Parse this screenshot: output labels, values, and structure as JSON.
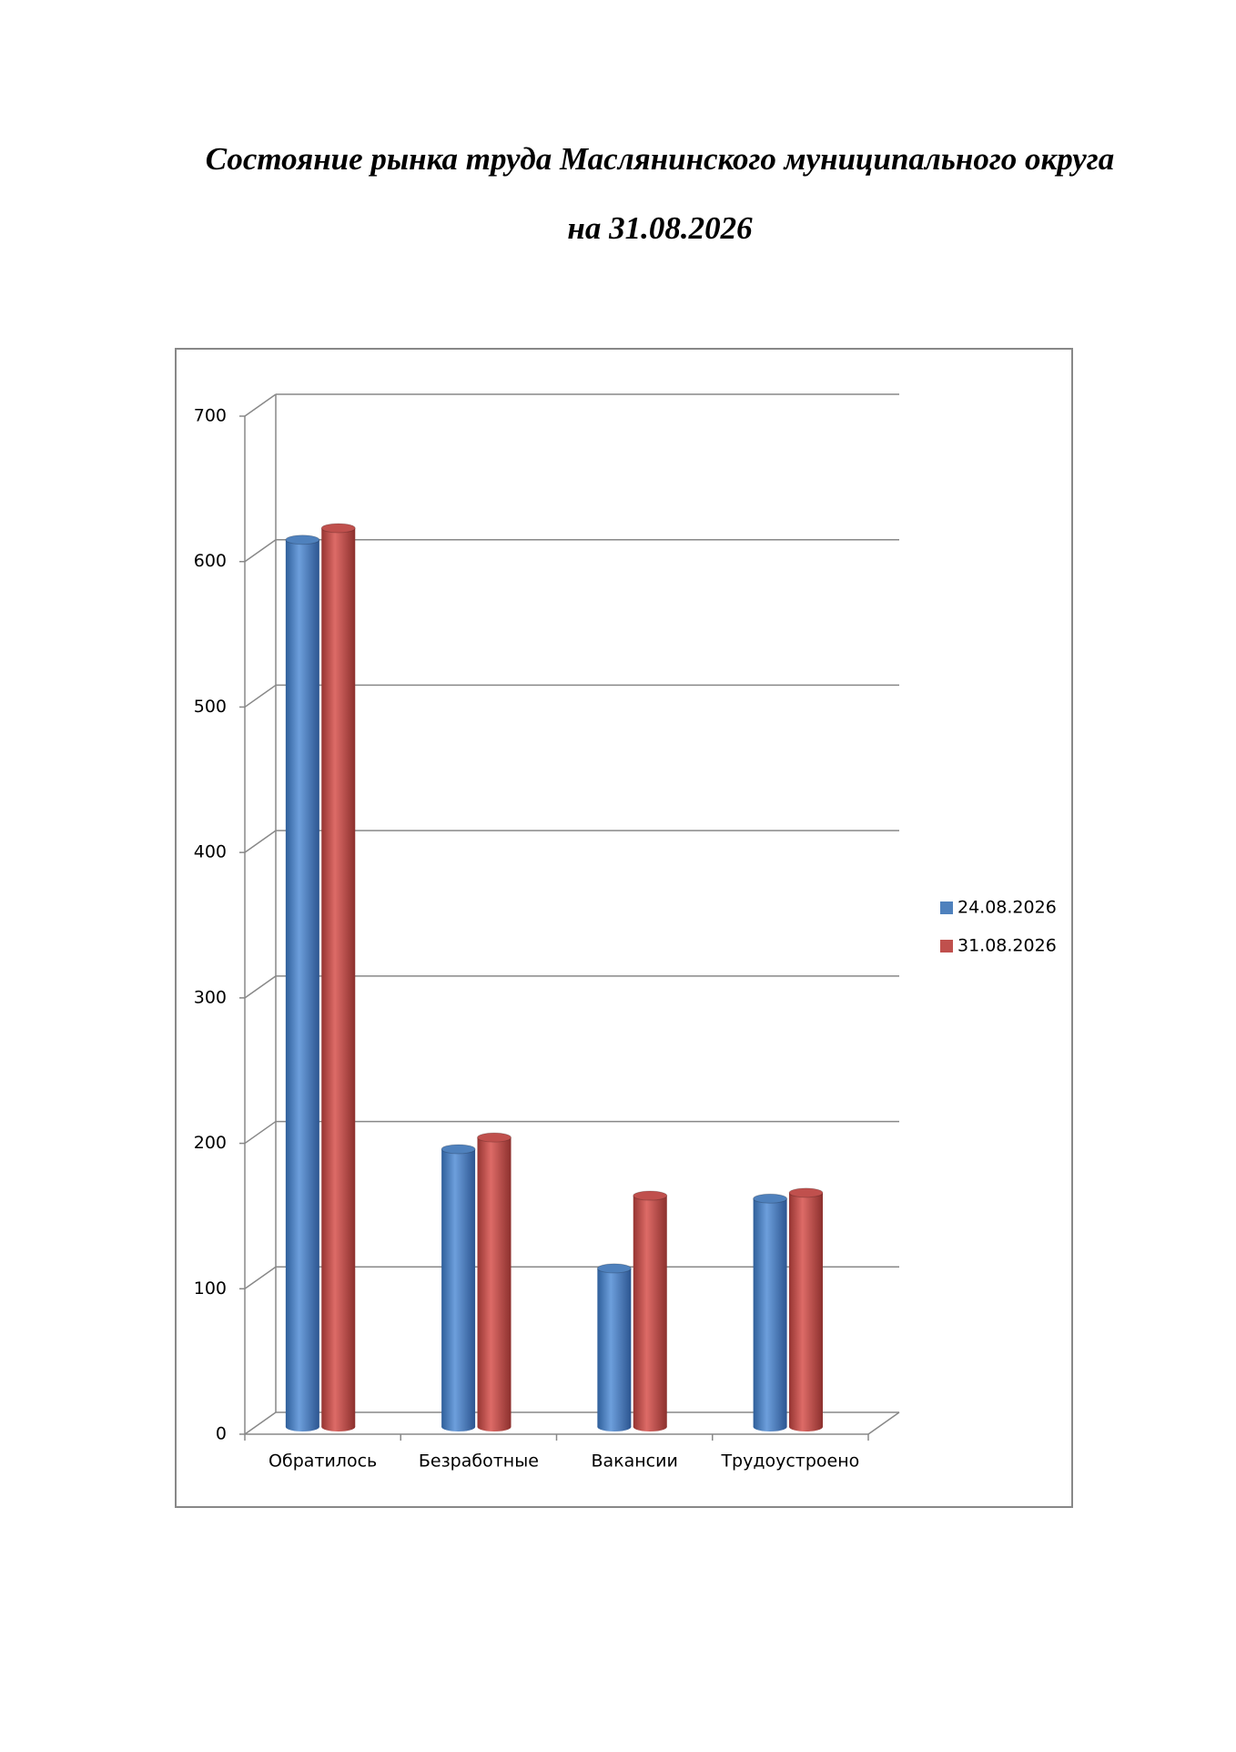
{
  "chart_data": {
    "type": "bar",
    "title": "Состояние рынка труда Маслянинского муниципального округа",
    "subtitle": "на 31.08.2026",
    "categories": [
      "Обратилось",
      "Безработные",
      "Вакансии",
      "Трудоустроено"
    ],
    "series": [
      {
        "name": "24.08.2026",
        "color": "#4f81bd",
        "values": [
          610,
          191,
          109,
          157
        ]
      },
      {
        "name": "31.08.2026",
        "color": "#c0504d",
        "values": [
          618,
          199,
          159,
          161
        ]
      }
    ],
    "ylim": [
      0,
      700
    ],
    "yticks": [
      0,
      100,
      200,
      300,
      400,
      500,
      600,
      700
    ],
    "grid": true,
    "legend": "right"
  }
}
